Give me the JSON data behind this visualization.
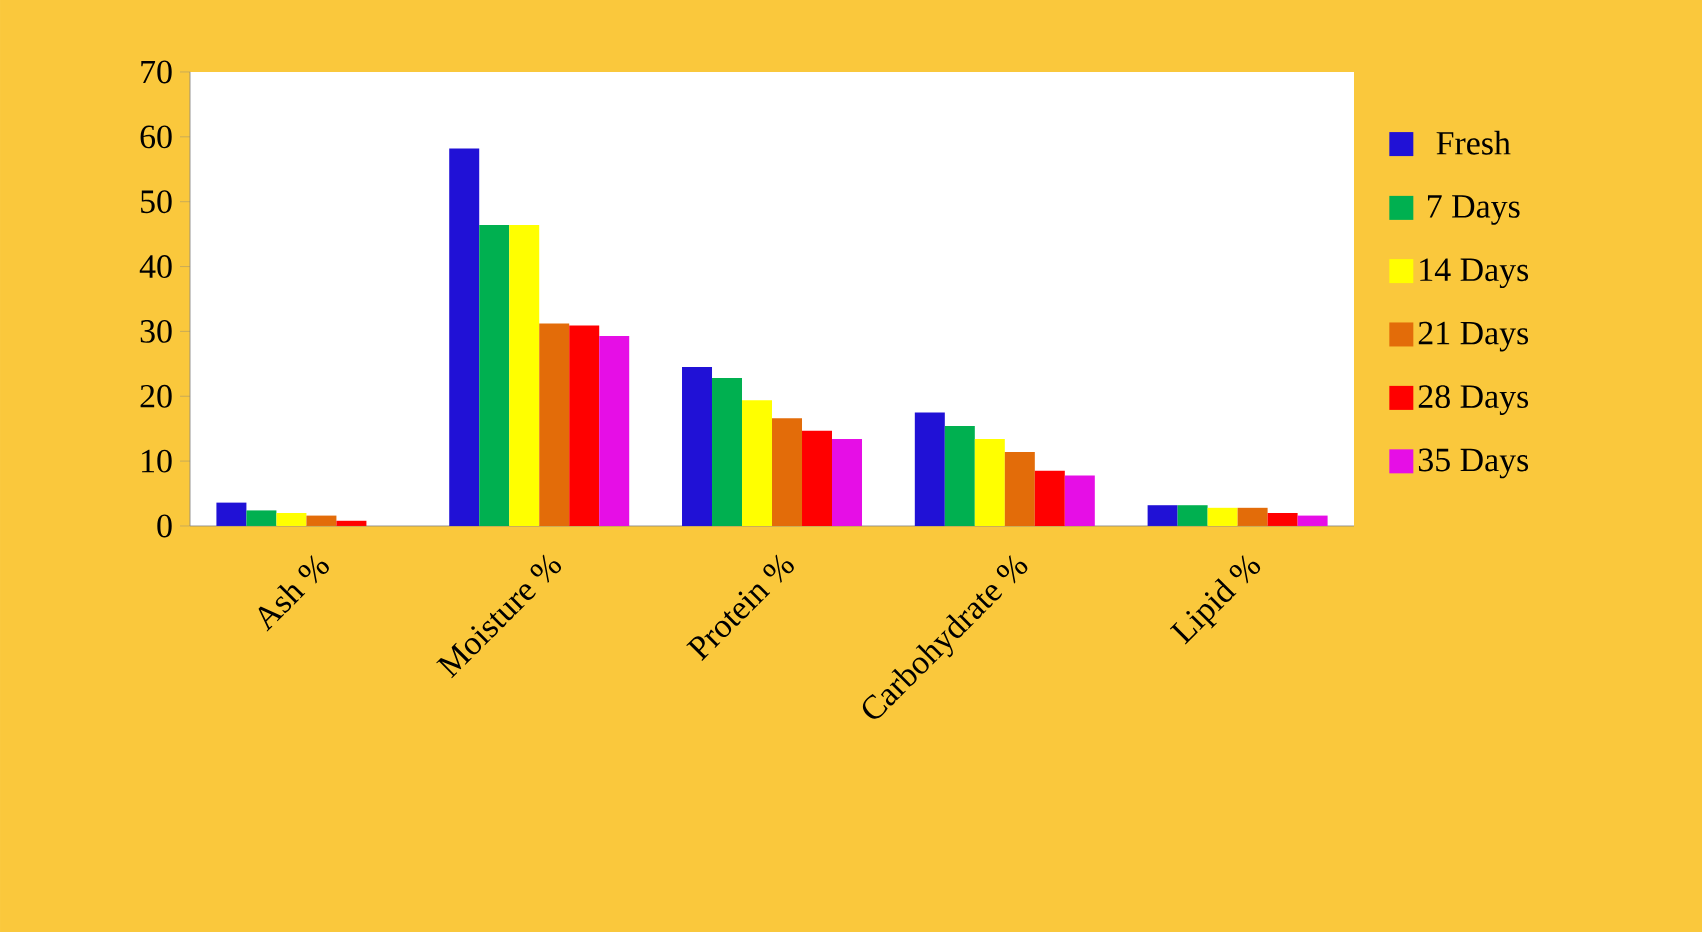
{
  "chart_data": {
    "type": "bar",
    "categories": [
      "Ash  %",
      "Moisture %",
      "Protein %",
      "Carbohydrate %",
      "Lipid %"
    ],
    "series": [
      {
        "name": "Fresh",
        "color": "#2011d6",
        "values": [
          3.6,
          58.2,
          24.5,
          17.5,
          3.2
        ]
      },
      {
        "name": "7 Days",
        "color": "#00b050",
        "values": [
          2.4,
          46.4,
          22.8,
          15.4,
          3.2
        ]
      },
      {
        "name": "14 Days",
        "color": "#ffff00",
        "values": [
          2.0,
          46.4,
          19.4,
          13.4,
          2.8
        ]
      },
      {
        "name": "21 Days",
        "color": "#e36c09",
        "values": [
          1.6,
          31.2,
          16.6,
          11.4,
          2.8
        ]
      },
      {
        "name": "28 Days",
        "color": "#ff0000",
        "values": [
          0.8,
          30.9,
          14.7,
          8.5,
          2.0
        ]
      },
      {
        "name": "35 Days",
        "color": "#e60ee6",
        "values": [
          null,
          29.3,
          13.4,
          7.8,
          1.6
        ]
      }
    ],
    "ylim": [
      0,
      70
    ],
    "yticks": [
      0,
      10,
      20,
      30,
      40,
      50,
      60,
      70
    ],
    "grid": false,
    "legend": "right"
  }
}
